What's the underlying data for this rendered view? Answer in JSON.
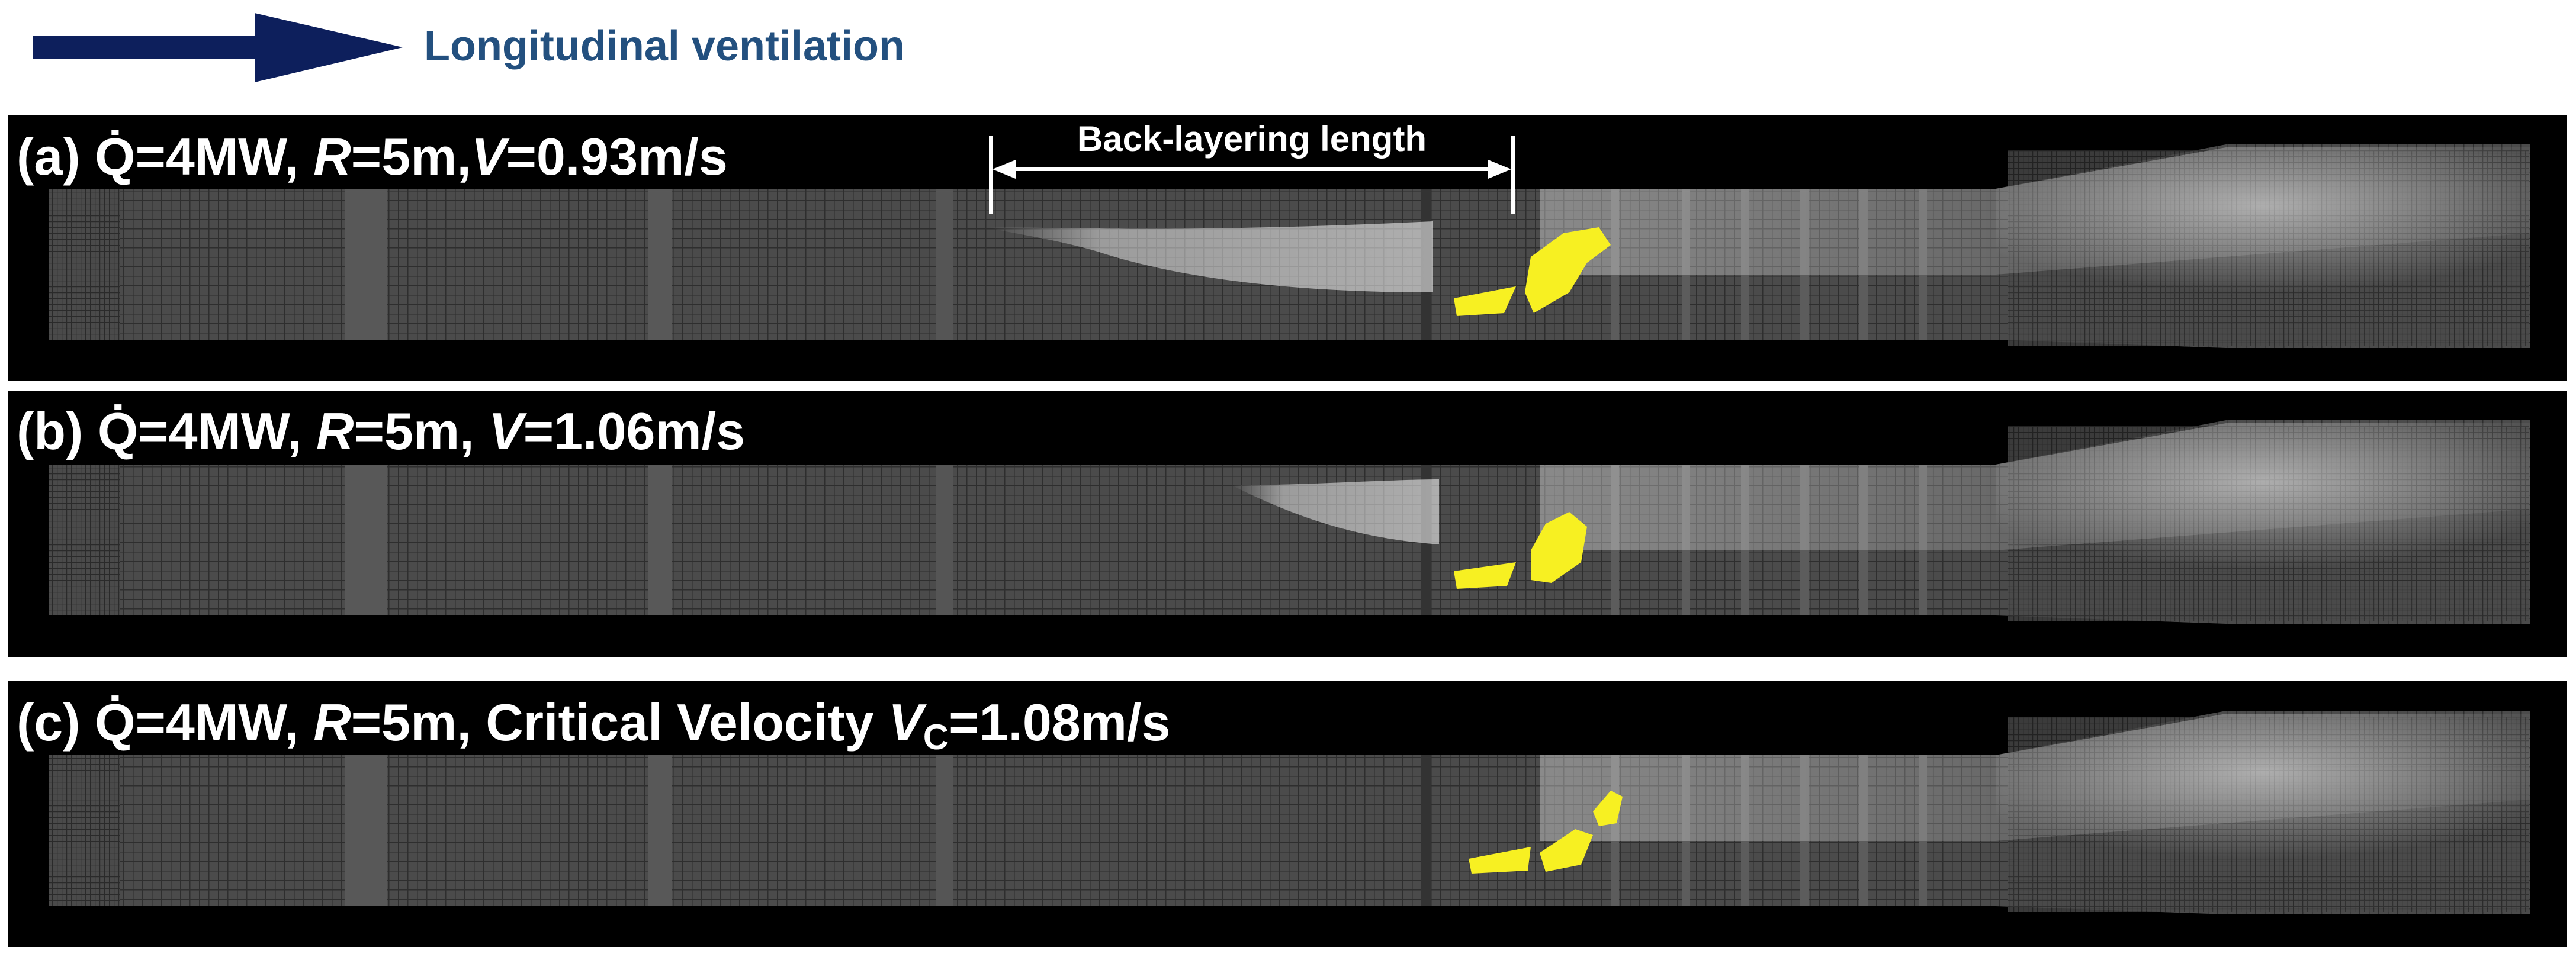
{
  "header": {
    "arrow_label": "Longitudinal ventilation"
  },
  "panels": [
    {
      "label": [
        {
          "text": "(a) "
        },
        {
          "text": "Q̇"
        },
        {
          "text": "=4MW, "
        },
        {
          "text": "R",
          "style": "italic"
        },
        {
          "text": "=5m,"
        },
        {
          "text": "V",
          "style": "italic"
        },
        {
          "text": "=0.93m/s"
        }
      ],
      "annotation": "Back-layering length"
    },
    {
      "label": [
        {
          "text": "(b) "
        },
        {
          "text": "Q̇"
        },
        {
          "text": "=4MW, "
        },
        {
          "text": "R",
          "style": "italic"
        },
        {
          "text": "=5m, "
        },
        {
          "text": "V",
          "style": "italic"
        },
        {
          "text": "=1.06m/s"
        }
      ]
    },
    {
      "label": [
        {
          "text": "(c) "
        },
        {
          "text": "Q̇"
        },
        {
          "text": "=4MW, "
        },
        {
          "text": "R",
          "style": "italic"
        },
        {
          "text": "=5m, Critical Velocity "
        },
        {
          "text": "V",
          "style": "italic"
        },
        {
          "text": "C",
          "style": "subscript"
        },
        {
          "text": "=1.08m/s"
        }
      ]
    }
  ]
}
